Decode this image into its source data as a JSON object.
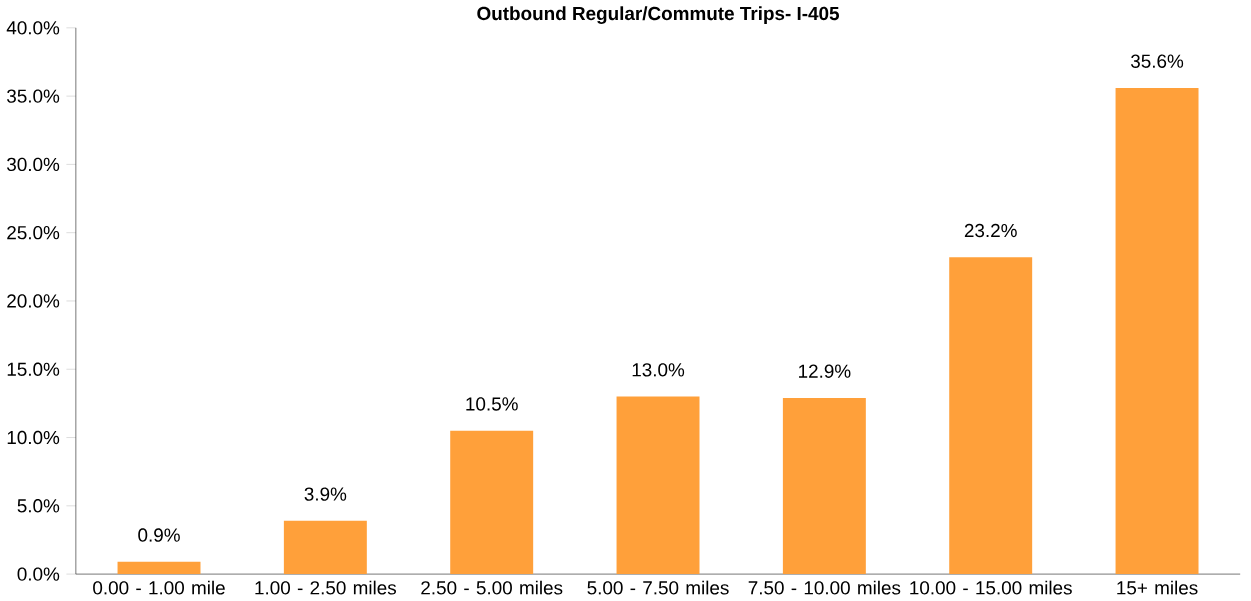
{
  "chart_data": {
    "type": "bar",
    "title": "Outbound Regular/Commute Trips- I-405",
    "categories": [
      "0.00 - 1.00 mile",
      "1.00 - 2.50 miles",
      "2.50 - 5.00 miles",
      "5.00 - 7.50 miles",
      "7.50 - 10.00 miles",
      "10.00 - 15.00 miles",
      "15+ miles"
    ],
    "values": [
      0.9,
      3.9,
      10.5,
      13.0,
      12.9,
      23.2,
      35.6
    ],
    "value_labels": [
      "0.9%",
      "3.9%",
      "10.5%",
      "13.0%",
      "12.9%",
      "23.2%",
      "35.6%"
    ],
    "color": "#ffa03a",
    "ylim": [
      0,
      40
    ],
    "yticks": [
      {
        "value": 0,
        "label": "0.0%"
      },
      {
        "value": 5,
        "label": "5.0%"
      },
      {
        "value": 10,
        "label": "10.0%"
      },
      {
        "value": 15,
        "label": "15.0%"
      },
      {
        "value": 20,
        "label": "20.0%"
      },
      {
        "value": 25,
        "label": "25.0%"
      },
      {
        "value": 30,
        "label": "30.0%"
      },
      {
        "value": 35,
        "label": "35.0%"
      },
      {
        "value": 40,
        "label": "40.0%"
      }
    ],
    "grid": false
  }
}
